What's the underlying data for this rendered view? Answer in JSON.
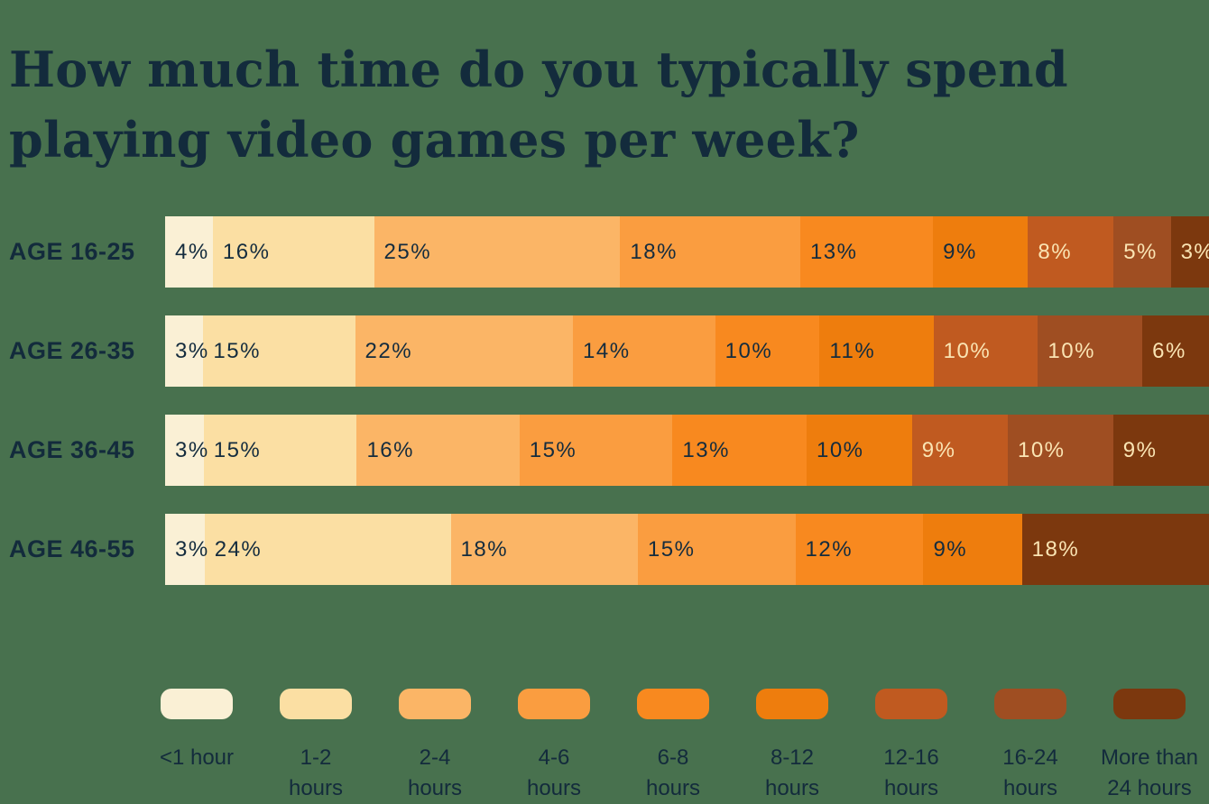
{
  "page": {
    "background_color": "#48714E",
    "text_color": "#132B3C"
  },
  "title": {
    "text": "How much time do you typically spend playing video games per week?",
    "lines": [
      "How much time do you typically spend",
      "playing video games per week?"
    ],
    "color": "#132B3C"
  },
  "chart_data": {
    "type": "bar",
    "variant": "horizontal-stacked",
    "unit": "%",
    "title": "How much time do you typically spend playing video games per week?",
    "categories": [
      "<1 hour",
      "1-2 hours",
      "2-4 hours",
      "4-6 hours",
      "6-8 hours",
      "8-12 hours",
      "12-16 hours",
      "16-24 hours",
      "More than 24 hours"
    ],
    "category_colors": [
      "#FAF0D5",
      "#FBDFA3",
      "#FBB566",
      "#FA9D40",
      "#F8891F",
      "#EE7D0D",
      "#C05A20",
      "#9F4E22",
      "#7C380E"
    ],
    "rows": [
      {
        "label": "AGE 16-25",
        "values": [
          4,
          16,
          25,
          18,
          13,
          9,
          8,
          5,
          3
        ]
      },
      {
        "label": "AGE 26-35",
        "values": [
          3,
          15,
          22,
          14,
          10,
          11,
          10,
          10,
          6
        ]
      },
      {
        "label": "AGE 36-45",
        "values": [
          3,
          15,
          16,
          15,
          13,
          10,
          9,
          10,
          9
        ]
      },
      {
        "label": "AGE 46-55",
        "values": [
          3,
          24,
          18,
          15,
          12,
          9,
          0,
          0,
          18
        ]
      }
    ],
    "value_label_format": "{value}%",
    "value_label_color_dark": "#142C3E",
    "value_label_color_light": "#FAE4B3",
    "light_label_from_index": 6,
    "legend_position": "bottom",
    "grid": false
  },
  "legend": {
    "items": [
      {
        "label": "<1 hour",
        "display": "<1 hour"
      },
      {
        "label": "1-2 hours",
        "display": "1-2\nhours"
      },
      {
        "label": "2-4 hours",
        "display": "2-4\nhours"
      },
      {
        "label": "4-6 hours",
        "display": "4-6\nhours"
      },
      {
        "label": "6-8 hours",
        "display": "6-8\nhours"
      },
      {
        "label": "8-12 hours",
        "display": "8-12\nhours"
      },
      {
        "label": "12-16 hours",
        "display": "12-16\nhours"
      },
      {
        "label": "16-24 hours",
        "display": "16-24\nhours"
      },
      {
        "label": "More than 24 hours",
        "display": "More than\n24 hours"
      }
    ]
  }
}
